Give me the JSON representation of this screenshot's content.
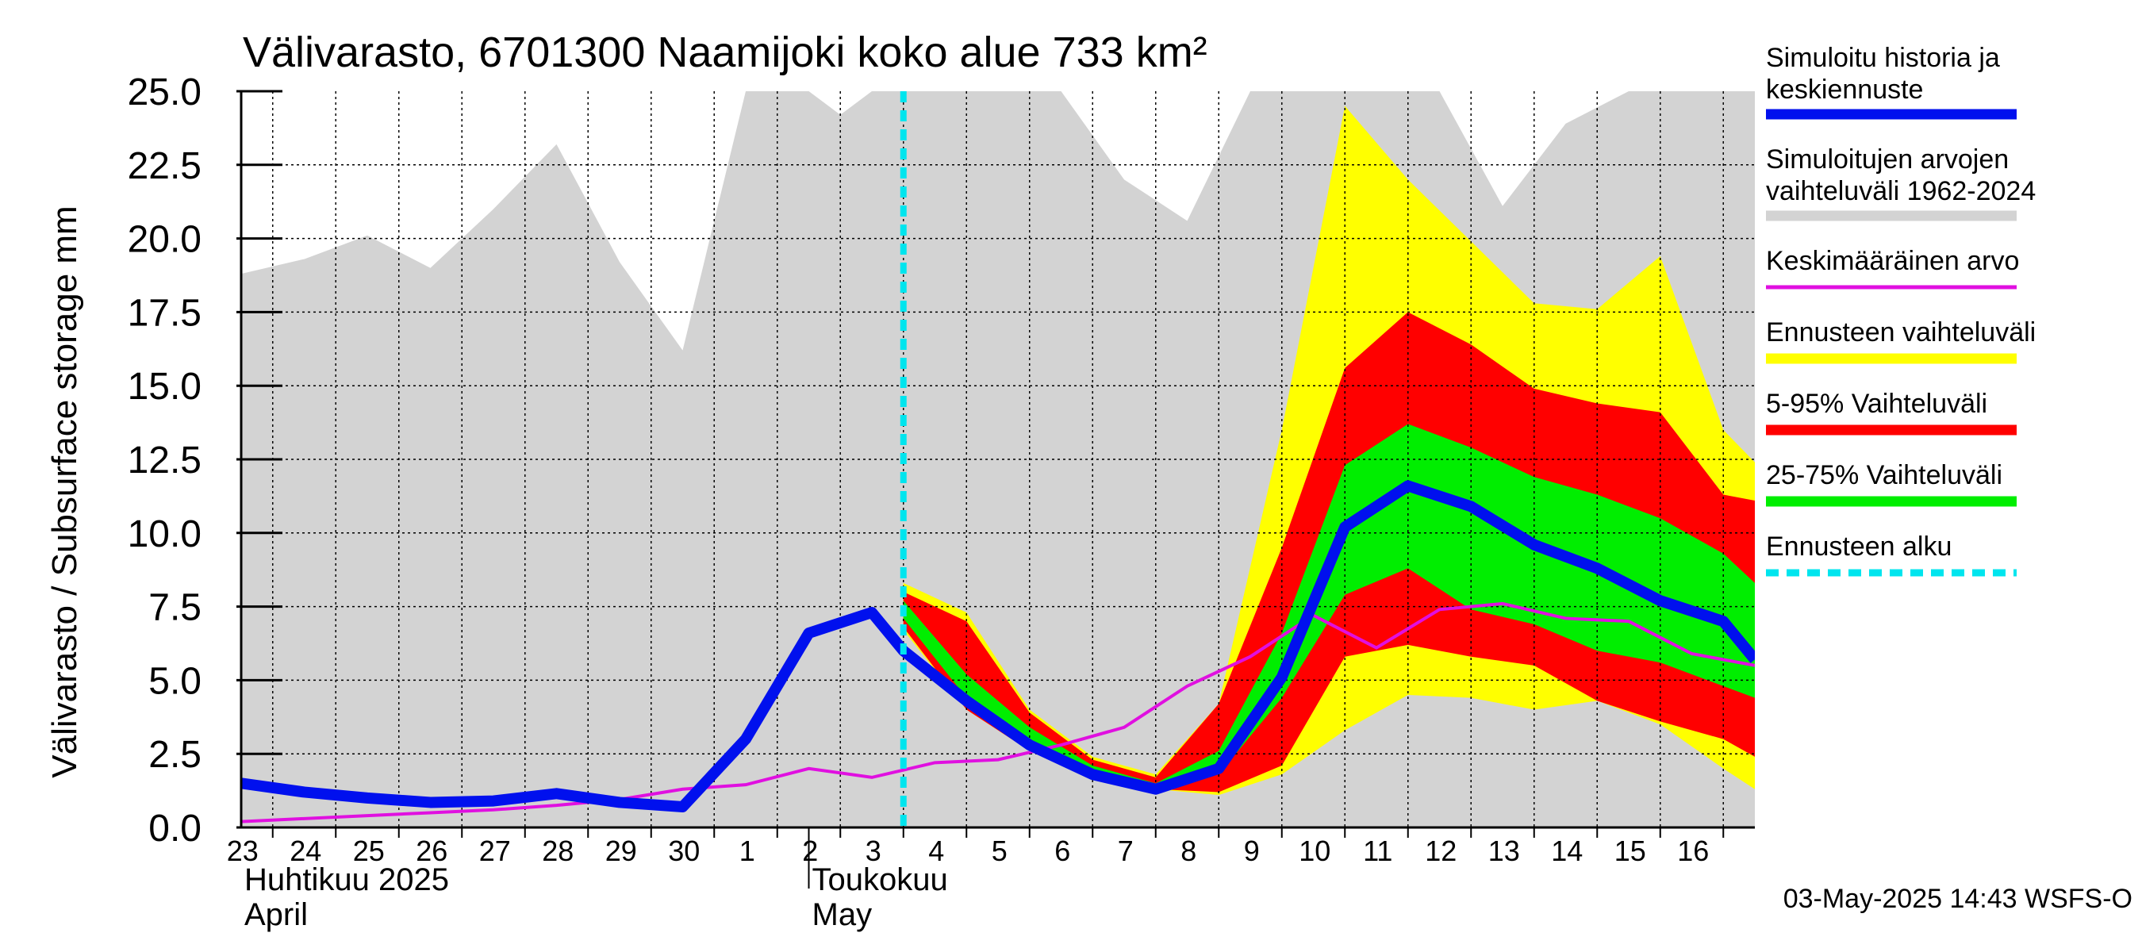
{
  "chart_data": {
    "type": "area",
    "title": "Välivarasto, 6701300 Naamijoki koko alue 733 km²",
    "ylabel": "Välivarasto / Subsurface storage  mm",
    "ylim": [
      0,
      25
    ],
    "yticks": [
      "0.0",
      "2.5",
      "5.0",
      "7.5",
      "10.0",
      "12.5",
      "15.0",
      "17.5",
      "20.0",
      "22.5",
      "25.0"
    ],
    "x_day_range": [
      -8.5,
      15.5
    ],
    "forecast_start": 2,
    "x_tick_labels": [
      "23",
      "24",
      "25",
      "26",
      "27",
      "28",
      "29",
      "30",
      "1",
      "2",
      "3",
      "4",
      "5",
      "6",
      "7",
      "8",
      "9",
      "10",
      "11",
      "12",
      "13",
      "14",
      "15",
      "16"
    ],
    "month_labels": [
      {
        "day": -8.5,
        "label": "Huhtikuu  2025",
        "label_en": "April"
      },
      {
        "day": 0.5,
        "label": "Toukokuu",
        "label_en": "May"
      }
    ],
    "hist_range": {
      "x": [
        -8.5,
        -7.5,
        -6.5,
        -5.5,
        -4.5,
        -3.5,
        -2.5,
        -1.5,
        -0.5,
        0.5,
        1.0,
        1.5,
        2.5,
        3.5,
        4.5,
        5.5,
        6.5,
        7.5,
        8.5,
        9.5,
        10.5,
        11.5,
        12.5,
        13.5,
        14.5,
        15.5
      ],
      "upper": [
        18.8,
        19.3,
        20.1,
        19.0,
        21.0,
        23.2,
        19.2,
        16.2,
        25.0,
        25.0,
        24.2,
        25.0,
        25.0,
        25.0,
        25.0,
        22.0,
        20.6,
        25.0,
        25.0,
        25.0,
        25.0,
        21.1,
        23.9,
        25.0,
        25.0,
        25.0
      ],
      "lower": [
        0,
        0,
        0,
        0,
        0,
        0,
        0,
        0,
        0,
        0,
        0,
        0,
        0,
        0,
        0,
        0,
        0,
        0,
        0,
        0,
        0,
        0,
        0,
        0,
        0,
        0
      ]
    },
    "forecast_x": [
      2,
      3,
      4,
      5,
      6,
      7,
      8,
      9,
      10,
      11,
      12,
      13,
      14,
      15,
      15.5
    ],
    "band_outer": {
      "upper": [
        8.3,
        7.3,
        4.0,
        2.4,
        1.8,
        4.2,
        13.5,
        24.5,
        22.0,
        19.9,
        17.8,
        17.6,
        19.4,
        13.5,
        12.4
      ],
      "lower": [
        6.7,
        4.0,
        2.6,
        1.8,
        1.3,
        1.1,
        1.8,
        3.3,
        4.5,
        4.4,
        4.0,
        4.3,
        3.5,
        2.0,
        1.3
      ]
    },
    "band_5_95": {
      "upper": [
        8.0,
        7.0,
        3.9,
        2.3,
        1.7,
        4.2,
        9.5,
        15.6,
        17.5,
        16.4,
        14.9,
        14.4,
        14.1,
        11.3,
        11.1
      ],
      "lower": [
        6.8,
        4.0,
        2.6,
        1.8,
        1.3,
        1.2,
        2.1,
        5.8,
        6.2,
        5.8,
        5.5,
        4.3,
        3.6,
        3.0,
        2.4
      ]
    },
    "band_25_75": {
      "upper": [
        7.7,
        5.2,
        3.4,
        2.1,
        1.5,
        2.6,
        6.6,
        12.3,
        13.7,
        12.9,
        11.9,
        11.3,
        10.5,
        9.3,
        8.3
      ],
      "lower": [
        7.1,
        4.4,
        2.9,
        1.9,
        1.4,
        1.8,
        4.4,
        7.9,
        8.8,
        7.4,
        6.9,
        6.0,
        5.6,
        4.8,
        4.4
      ]
    },
    "mean": {
      "x": [
        -8.5,
        -7.5,
        -6.5,
        -5.5,
        -4.5,
        -3.5,
        -2.5,
        -1.5,
        -0.5,
        0.5,
        1.5,
        2.5,
        3.5,
        4.5,
        5.5,
        6.5,
        7.5,
        8.5,
        9.5,
        10.5,
        11.5,
        12.5,
        13.5,
        14.5,
        15.5
      ],
      "values": [
        0.2,
        0.3,
        0.4,
        0.5,
        0.6,
        0.75,
        0.95,
        1.3,
        1.45,
        2.0,
        1.7,
        2.2,
        2.3,
        2.8,
        3.4,
        4.8,
        5.8,
        7.2,
        6.1,
        7.4,
        7.6,
        7.1,
        7.0,
        5.9,
        5.5
      ]
    },
    "series_main": {
      "x": [
        -8.5,
        -7.5,
        -6.5,
        -5.5,
        -4.5,
        -3.5,
        -2.5,
        -1.5,
        -0.5,
        0.5,
        1.5,
        2,
        3,
        4,
        5,
        6,
        7,
        8,
        9,
        10,
        11,
        12,
        13,
        14,
        15,
        15.5
      ],
      "values": [
        1.5,
        1.2,
        1.0,
        0.85,
        0.9,
        1.15,
        0.85,
        0.7,
        3.0,
        6.6,
        7.3,
        6.0,
        4.3,
        2.8,
        1.8,
        1.3,
        2.0,
        5.1,
        10.2,
        11.6,
        10.9,
        9.6,
        8.8,
        7.7,
        7.0,
        5.7
      ]
    },
    "legend": [
      {
        "line1": "Simuloitu historia ja",
        "line2": "keskiennuste",
        "color": "#0010ee",
        "style": "thick"
      },
      {
        "line1": "Simuloitujen arvojen",
        "line2": "vaihteluväli 1962-2024",
        "color": "#d3d3d3",
        "style": "thick"
      },
      {
        "line1": "Keskimääräinen arvo",
        "line2": "",
        "color": "#e010e0",
        "style": "thin"
      },
      {
        "line1": "Ennusteen vaihteluväli",
        "line2": "",
        "color": "#ffff00",
        "style": "thick"
      },
      {
        "line1": "5-95% Vaihteluväli",
        "line2": "",
        "color": "#ff0000",
        "style": "thick"
      },
      {
        "line1": "25-75% Vaihteluväli",
        "line2": "",
        "color": "#00ee00",
        "style": "thick"
      },
      {
        "line1": "Ennusteen alku",
        "line2": "",
        "color": "#00e5ee",
        "style": "dashed"
      }
    ],
    "footer": "03-May-2025 14:43 WSFS-O",
    "colors": {
      "hist": "#d3d3d3",
      "outer": "#ffff00",
      "p5_95": "#ff0000",
      "p25_75": "#00ee00",
      "main": "#0010ee",
      "mean": "#e010e0",
      "forecast_line": "#00e5ee"
    }
  }
}
